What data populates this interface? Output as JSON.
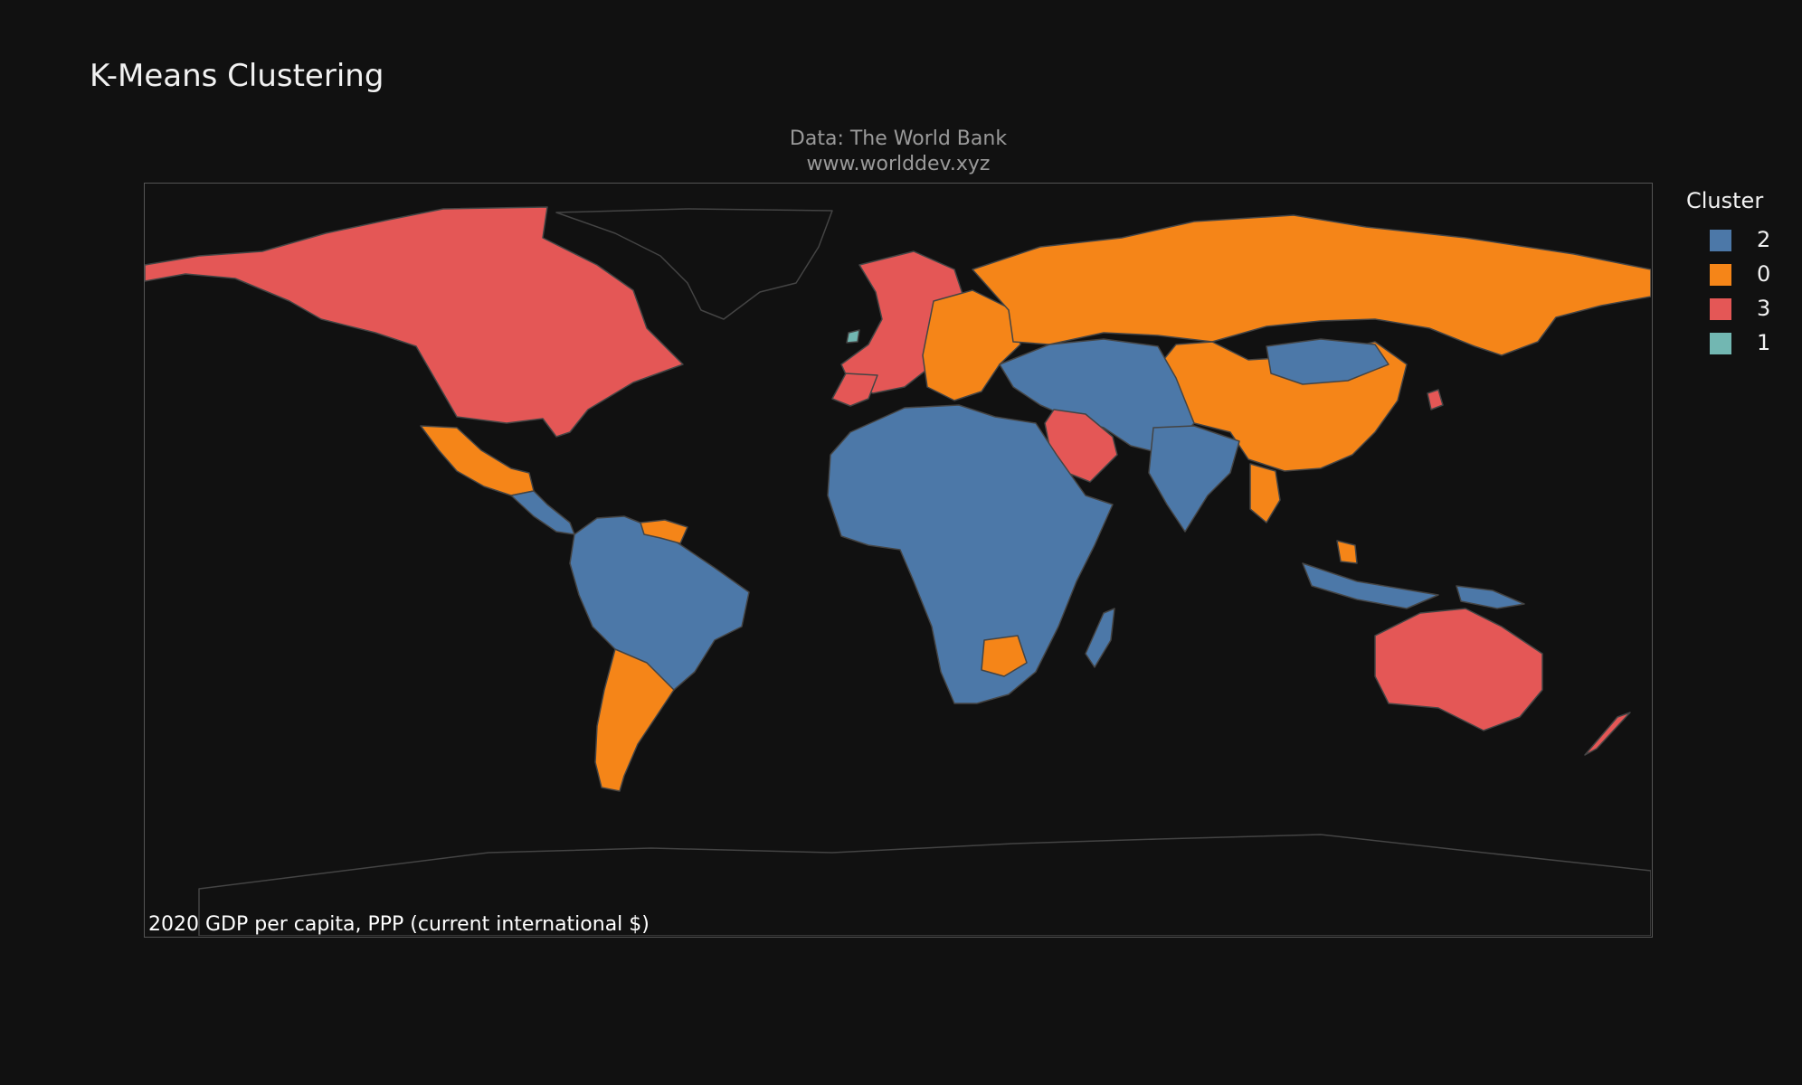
{
  "title": "K-Means Clustering",
  "source": {
    "line1": "Data: The World Bank",
    "line2": "www.worlddev.xyz"
  },
  "caption": "2020 GDP per capita, PPP (current international $)",
  "legend": {
    "title": "Cluster",
    "items": [
      {
        "label": "2",
        "color": "#4c78a8"
      },
      {
        "label": "0",
        "color": "#f58518"
      },
      {
        "label": "3",
        "color": "#e45756"
      },
      {
        "label": "1",
        "color": "#72b7b2"
      }
    ]
  },
  "colors": {
    "background": "#111111",
    "border": "#444444",
    "frame": "#555555"
  },
  "map_regions": [
    {
      "name": "north-america",
      "cluster": "3"
    },
    {
      "name": "greenland",
      "cluster": "none"
    },
    {
      "name": "mexico",
      "cluster": "0"
    },
    {
      "name": "central-america",
      "cluster": "2"
    },
    {
      "name": "south-america-north",
      "cluster": "2"
    },
    {
      "name": "venezuela-guyana",
      "cluster": "0"
    },
    {
      "name": "argentina-chile",
      "cluster": "0"
    },
    {
      "name": "western-europe",
      "cluster": "3"
    },
    {
      "name": "ireland",
      "cluster": "1"
    },
    {
      "name": "eastern-europe",
      "cluster": "0"
    },
    {
      "name": "russia",
      "cluster": "0"
    },
    {
      "name": "china",
      "cluster": "0"
    },
    {
      "name": "mongolia",
      "cluster": "2"
    },
    {
      "name": "africa",
      "cluster": "2"
    },
    {
      "name": "botswana",
      "cluster": "0"
    },
    {
      "name": "madagascar",
      "cluster": "2"
    },
    {
      "name": "saudi-arabia",
      "cluster": "3"
    },
    {
      "name": "middle-east-central-asia",
      "cluster": "2"
    },
    {
      "name": "india",
      "cluster": "2"
    },
    {
      "name": "thailand",
      "cluster": "0"
    },
    {
      "name": "indonesia",
      "cluster": "2"
    },
    {
      "name": "malaysia",
      "cluster": "0"
    },
    {
      "name": "papua-new-guinea",
      "cluster": "2"
    },
    {
      "name": "australia",
      "cluster": "3"
    },
    {
      "name": "new-zealand",
      "cluster": "3"
    },
    {
      "name": "japan-korea",
      "cluster": "3"
    }
  ]
}
